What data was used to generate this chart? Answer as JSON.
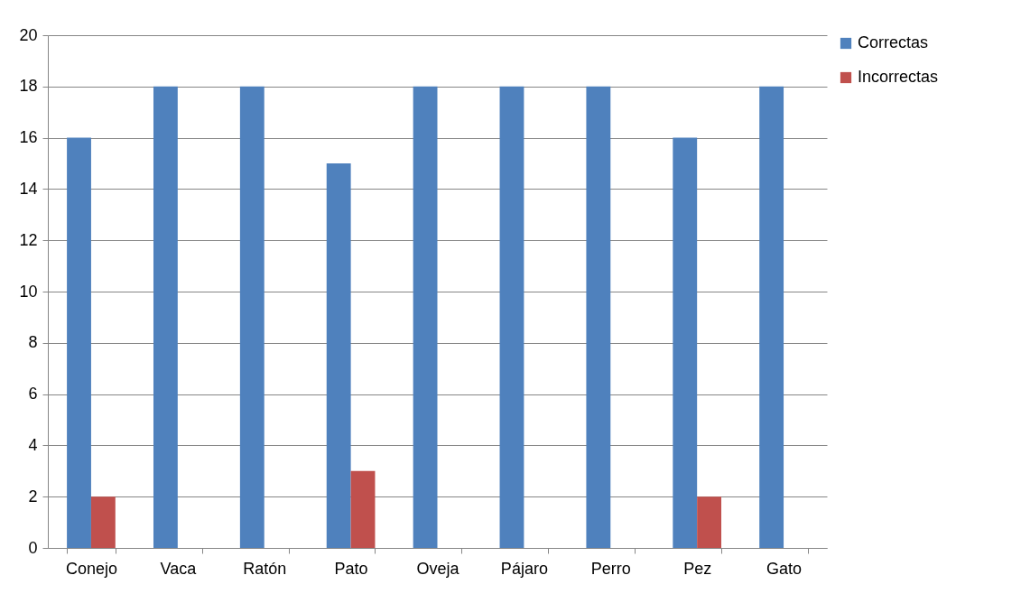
{
  "chart_data": {
    "type": "bar",
    "categories": [
      "Conejo",
      "Vaca",
      "Ratón",
      "Pato",
      "Oveja",
      "Pájaro",
      "Perro",
      "Pez",
      "Gato"
    ],
    "series": [
      {
        "name": "Correctas",
        "color": "#4f81bd",
        "values": [
          16,
          18,
          18,
          15,
          18,
          18,
          18,
          16,
          18
        ]
      },
      {
        "name": "Incorrectas",
        "color": "#c0504d",
        "values": [
          2,
          0,
          0,
          3,
          0,
          0,
          0,
          2,
          0
        ]
      }
    ],
    "ylim": [
      0,
      20
    ],
    "yticks": [
      0,
      2,
      4,
      6,
      8,
      10,
      12,
      14,
      16,
      18,
      20
    ],
    "grid": "y",
    "legend": "right"
  }
}
